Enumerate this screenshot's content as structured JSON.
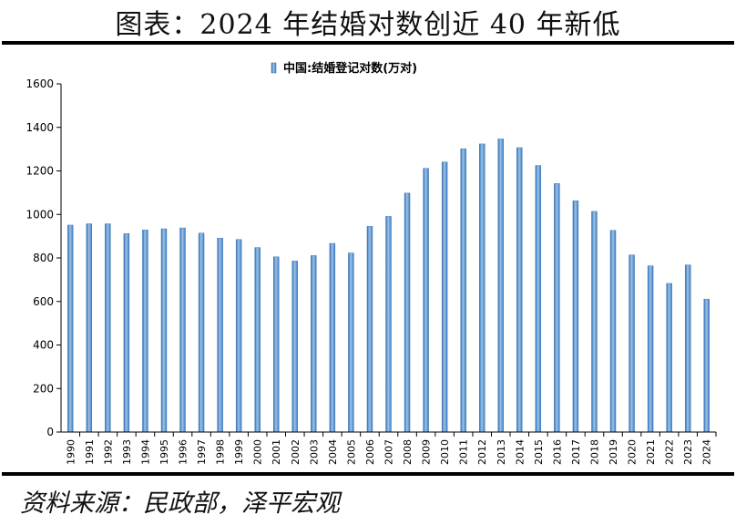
{
  "figure": {
    "title": "图表：2024 年结婚对数创近 40 年新低",
    "source": "资料来源：民政部，泽平宏观"
  },
  "chart_data": {
    "type": "bar",
    "legend": "中国:结婚登记对数(万对)",
    "legend_position": "top-center",
    "categories": [
      "1990",
      "1991",
      "1992",
      "1993",
      "1994",
      "1995",
      "1996",
      "1997",
      "1998",
      "1999",
      "2000",
      "2001",
      "2002",
      "2003",
      "2004",
      "2005",
      "2006",
      "2007",
      "2008",
      "2009",
      "2010",
      "2011",
      "2012",
      "2013",
      "2014",
      "2015",
      "2016",
      "2017",
      "2018",
      "2019",
      "2020",
      "2021",
      "2022",
      "2023",
      "2024"
    ],
    "series": [
      {
        "name": "中国:结婚登记对数(万对)",
        "values": [
          951,
          957,
          957,
          912,
          929,
          934,
          938,
          914,
          891,
          885,
          848,
          805,
          786,
          811,
          867,
          823,
          945,
          991,
          1098,
          1212,
          1241,
          1302,
          1324,
          1347,
          1307,
          1225,
          1142,
          1063,
          1014,
          927,
          814,
          764,
          683,
          768,
          611
        ]
      }
    ],
    "ylim": [
      0,
      1600
    ],
    "yticks": [
      0,
      200,
      400,
      600,
      800,
      1000,
      1200,
      1400,
      1600
    ],
    "grid": false,
    "bar_color": "#5b9bd5"
  }
}
